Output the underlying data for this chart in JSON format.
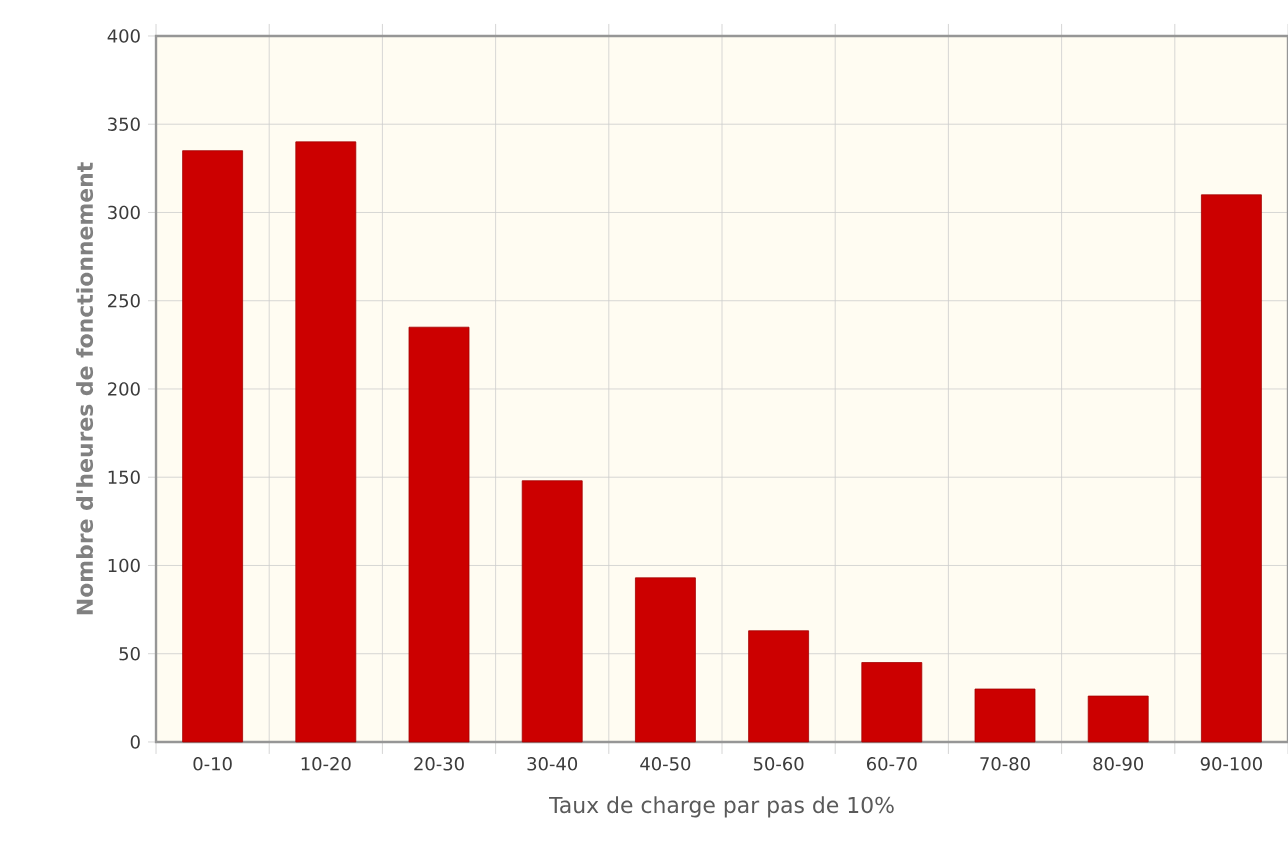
{
  "chart_data": {
    "type": "bar",
    "xlabel": "Taux de charge par pas de 10%",
    "ylabel": "Nombre d'heures de fonctionnement",
    "categories": [
      "0-10",
      "10-20",
      "20-30",
      "30-40",
      "40-50",
      "50-60",
      "60-70",
      "70-80",
      "80-90",
      "90-100"
    ],
    "values": [
      335,
      340,
      235,
      148,
      93,
      63,
      45,
      30,
      26,
      310
    ],
    "color": "#cc0000",
    "ylim": [
      0,
      400
    ],
    "yticks": [
      0,
      50,
      100,
      150,
      200,
      250,
      300,
      350,
      400
    ],
    "grid": true
  }
}
